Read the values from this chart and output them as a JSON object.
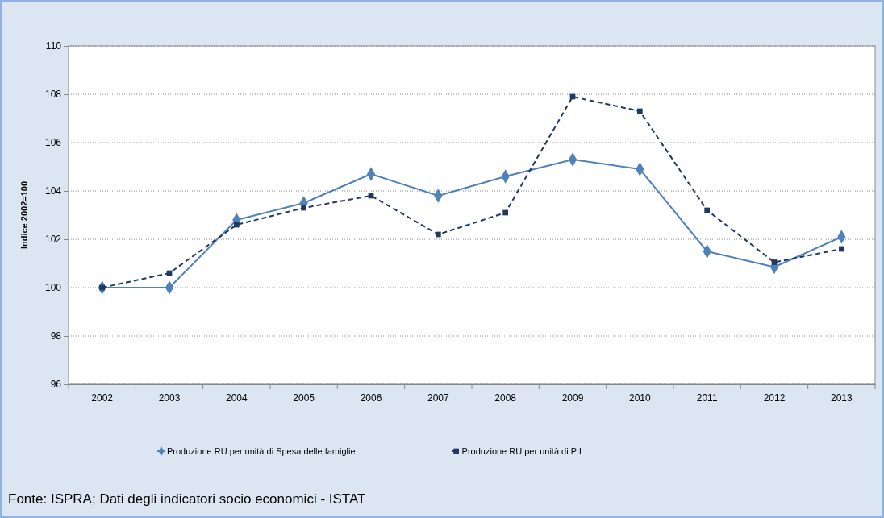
{
  "chart_data": {
    "type": "line",
    "ylabel": "Indice 2002=100",
    "categories": [
      "2002",
      "2003",
      "2004",
      "2005",
      "2006",
      "2007",
      "2008",
      "2009",
      "2010",
      "2011",
      "2012",
      "2013"
    ],
    "ylim": [
      96,
      110
    ],
    "yticks": [
      96,
      98,
      100,
      102,
      104,
      106,
      108,
      110
    ],
    "grid": "y",
    "legend": "bottom",
    "series": [
      {
        "name": "Produzione RU per unità di Spesa delle famiglie",
        "color": "#4f81bd",
        "marker": "diamond",
        "line_style": "solid",
        "values": [
          100,
          100,
          102.8,
          103.5,
          104.7,
          103.8,
          104.6,
          105.3,
          104.9,
          101.5,
          100.85,
          102.1
        ]
      },
      {
        "name": "Produzione RU per unità di PIL",
        "color": "#1f3864",
        "marker": "square",
        "line_style": "dashed",
        "values": [
          100,
          100.6,
          102.6,
          103.3,
          103.8,
          102.2,
          103.1,
          107.9,
          107.3,
          103.2,
          101.05,
          101.6
        ]
      }
    ],
    "annotations": [
      "Fonte: ISPRA; Dati degli indicatori socio economici - ISTAT"
    ]
  }
}
